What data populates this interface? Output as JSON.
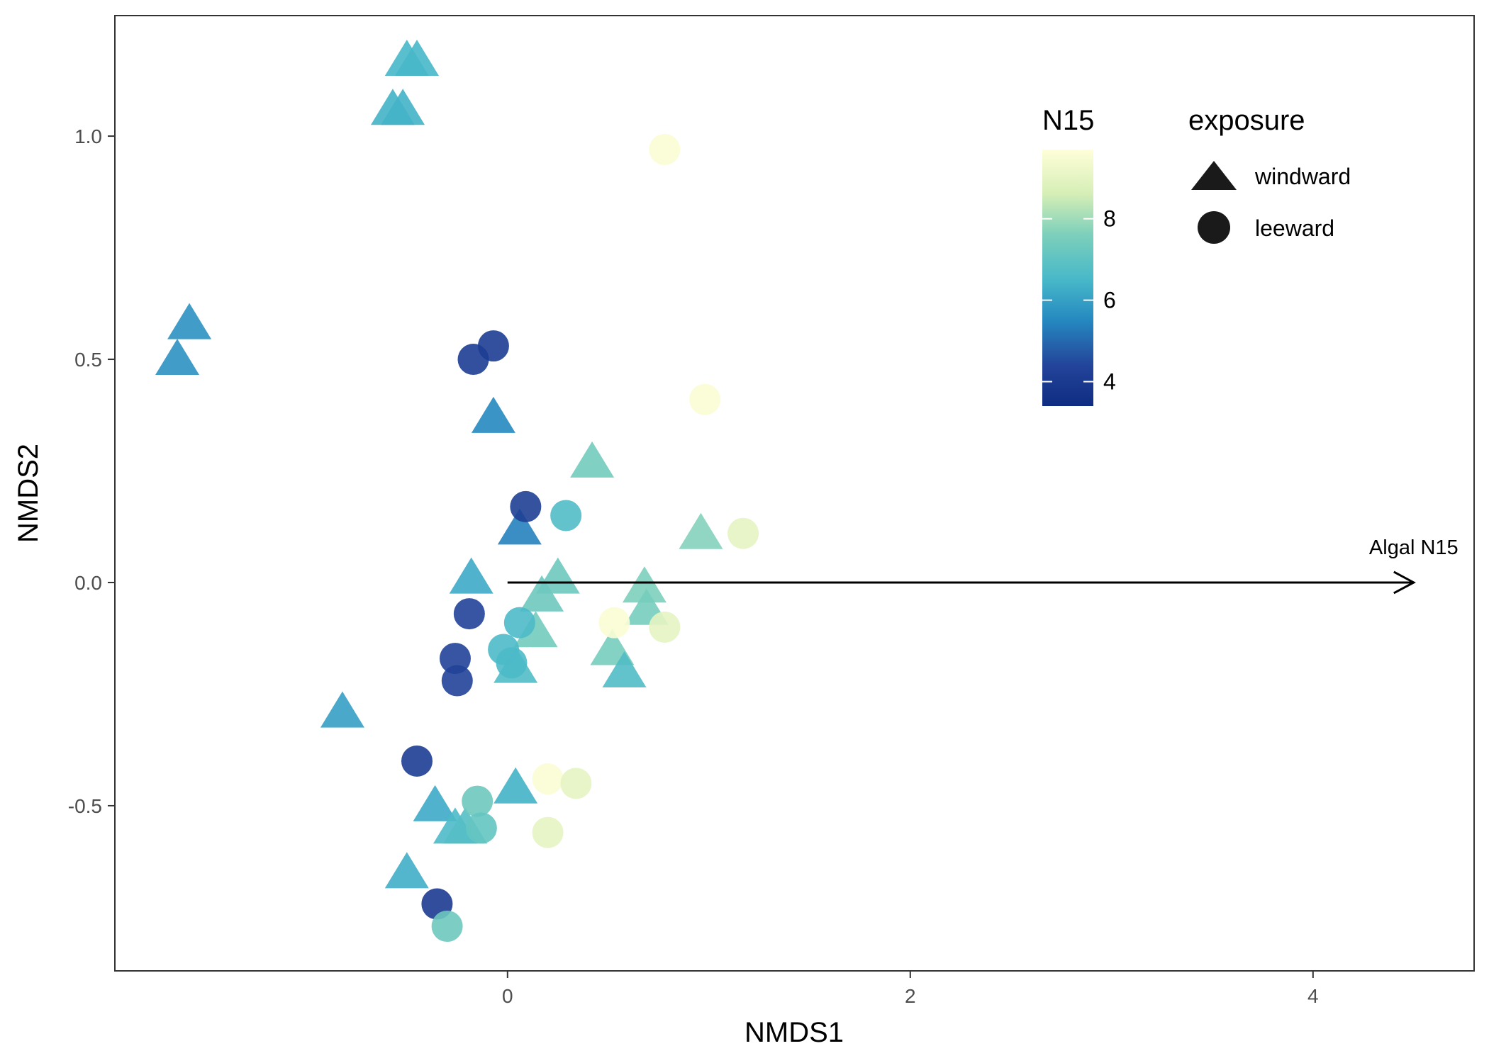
{
  "chart_data": {
    "type": "scatter",
    "xlabel": "NMDS1",
    "ylabel": "NMDS2",
    "xlim": [
      -1.95,
      4.8
    ],
    "ylim": [
      -0.87,
      1.27
    ],
    "xticks": [
      {
        "value": 0,
        "label": "0"
      },
      {
        "value": 2,
        "label": "2"
      },
      {
        "value": 4,
        "label": "4"
      }
    ],
    "yticks": [
      {
        "value": 1.0,
        "label": "1.0"
      },
      {
        "value": 0.5,
        "label": "0.5"
      },
      {
        "value": 0.0,
        "label": "0.0"
      },
      {
        "value": -0.5,
        "label": "-0.5"
      }
    ],
    "grid": false,
    "color_scale": {
      "title": "N15",
      "min": 3.4,
      "max": 9.7,
      "ticks": [
        {
          "value": 4,
          "label": "4"
        },
        {
          "value": 6,
          "label": "6"
        },
        {
          "value": 8,
          "label": "8"
        }
      ],
      "stops": [
        {
          "value": 3.4,
          "color": "#0e2c82"
        },
        {
          "value": 4.4,
          "color": "#23449a"
        },
        {
          "value": 5.5,
          "color": "#2588c0"
        },
        {
          "value": 6.5,
          "color": "#47b8c9"
        },
        {
          "value": 7.6,
          "color": "#7ccfbb"
        },
        {
          "value": 8.6,
          "color": "#d5eeb6"
        },
        {
          "value": 9.7,
          "color": "#ffffd8"
        }
      ]
    },
    "shape_legend": {
      "title": "exposure",
      "items": [
        {
          "label": "windward",
          "shape": "triangle"
        },
        {
          "label": "leeward",
          "shape": "circle"
        }
      ]
    },
    "vector": {
      "label": "Algal N15",
      "from": [
        0,
        0
      ],
      "to": [
        4.5,
        0
      ]
    },
    "points": [
      {
        "x": -0.5,
        "y": 1.17,
        "n15": 6.5,
        "exposure": "windward"
      },
      {
        "x": -0.45,
        "y": 1.17,
        "n15": 6.5,
        "exposure": "windward"
      },
      {
        "x": -0.57,
        "y": 1.06,
        "n15": 6.4,
        "exposure": "windward"
      },
      {
        "x": -0.52,
        "y": 1.06,
        "n15": 6.4,
        "exposure": "windward"
      },
      {
        "x": -1.58,
        "y": 0.58,
        "n15": 5.7,
        "exposure": "windward"
      },
      {
        "x": -1.64,
        "y": 0.5,
        "n15": 5.7,
        "exposure": "windward"
      },
      {
        "x": -0.07,
        "y": 0.37,
        "n15": 5.5,
        "exposure": "windward"
      },
      {
        "x": 0.42,
        "y": 0.27,
        "n15": 7.4,
        "exposure": "windward"
      },
      {
        "x": 0.06,
        "y": 0.12,
        "n15": 5.4,
        "exposure": "windward"
      },
      {
        "x": 0.96,
        "y": 0.11,
        "n15": 7.7,
        "exposure": "windward"
      },
      {
        "x": -0.18,
        "y": 0.01,
        "n15": 6.2,
        "exposure": "windward"
      },
      {
        "x": 0.25,
        "y": 0.01,
        "n15": 7.3,
        "exposure": "windward"
      },
      {
        "x": 0.68,
        "y": -0.01,
        "n15": 7.6,
        "exposure": "windward"
      },
      {
        "x": 0.17,
        "y": -0.03,
        "n15": 7.3,
        "exposure": "windward"
      },
      {
        "x": 0.69,
        "y": -0.06,
        "n15": 7.5,
        "exposure": "windward"
      },
      {
        "x": 0.14,
        "y": -0.11,
        "n15": 7.4,
        "exposure": "windward"
      },
      {
        "x": 0.52,
        "y": -0.15,
        "n15": 7.5,
        "exposure": "windward"
      },
      {
        "x": 0.04,
        "y": -0.19,
        "n15": 6.7,
        "exposure": "windward"
      },
      {
        "x": 0.58,
        "y": -0.2,
        "n15": 6.7,
        "exposure": "windward"
      },
      {
        "x": -0.82,
        "y": -0.29,
        "n15": 6.0,
        "exposure": "windward"
      },
      {
        "x": 0.04,
        "y": -0.46,
        "n15": 6.4,
        "exposure": "windward"
      },
      {
        "x": -0.36,
        "y": -0.5,
        "n15": 6.2,
        "exposure": "windward"
      },
      {
        "x": -0.26,
        "y": -0.55,
        "n15": 6.6,
        "exposure": "windward"
      },
      {
        "x": -0.21,
        "y": -0.55,
        "n15": 6.8,
        "exposure": "windward"
      },
      {
        "x": -0.5,
        "y": -0.65,
        "n15": 6.3,
        "exposure": "windward"
      },
      {
        "x": 0.78,
        "y": 0.97,
        "n15": 9.6,
        "exposure": "leeward"
      },
      {
        "x": 0.98,
        "y": 0.41,
        "n15": 9.6,
        "exposure": "leeward"
      },
      {
        "x": -0.07,
        "y": 0.53,
        "n15": 4.1,
        "exposure": "leeward"
      },
      {
        "x": -0.17,
        "y": 0.5,
        "n15": 4.1,
        "exposure": "leeward"
      },
      {
        "x": 0.09,
        "y": 0.17,
        "n15": 4.2,
        "exposure": "leeward"
      },
      {
        "x": 0.29,
        "y": 0.15,
        "n15": 6.7,
        "exposure": "leeward"
      },
      {
        "x": 1.17,
        "y": 0.11,
        "n15": 9.0,
        "exposure": "leeward"
      },
      {
        "x": -0.19,
        "y": -0.07,
        "n15": 4.3,
        "exposure": "leeward"
      },
      {
        "x": 0.06,
        "y": -0.09,
        "n15": 6.6,
        "exposure": "leeward"
      },
      {
        "x": 0.53,
        "y": -0.09,
        "n15": 9.6,
        "exposure": "leeward"
      },
      {
        "x": 0.78,
        "y": -0.1,
        "n15": 9.0,
        "exposure": "leeward"
      },
      {
        "x": -0.02,
        "y": -0.15,
        "n15": 6.6,
        "exposure": "leeward"
      },
      {
        "x": 0.02,
        "y": -0.18,
        "n15": 6.6,
        "exposure": "leeward"
      },
      {
        "x": -0.26,
        "y": -0.17,
        "n15": 4.3,
        "exposure": "leeward"
      },
      {
        "x": -0.25,
        "y": -0.22,
        "n15": 4.3,
        "exposure": "leeward"
      },
      {
        "x": -0.45,
        "y": -0.4,
        "n15": 4.1,
        "exposure": "leeward"
      },
      {
        "x": 0.2,
        "y": -0.44,
        "n15": 9.6,
        "exposure": "leeward"
      },
      {
        "x": 0.34,
        "y": -0.45,
        "n15": 9.0,
        "exposure": "leeward"
      },
      {
        "x": -0.15,
        "y": -0.49,
        "n15": 7.3,
        "exposure": "leeward"
      },
      {
        "x": -0.13,
        "y": -0.55,
        "n15": 7.1,
        "exposure": "leeward"
      },
      {
        "x": 0.2,
        "y": -0.56,
        "n15": 9.0,
        "exposure": "leeward"
      },
      {
        "x": -0.35,
        "y": -0.72,
        "n15": 4.0,
        "exposure": "leeward"
      },
      {
        "x": -0.3,
        "y": -0.77,
        "n15": 7.3,
        "exposure": "leeward"
      }
    ]
  }
}
